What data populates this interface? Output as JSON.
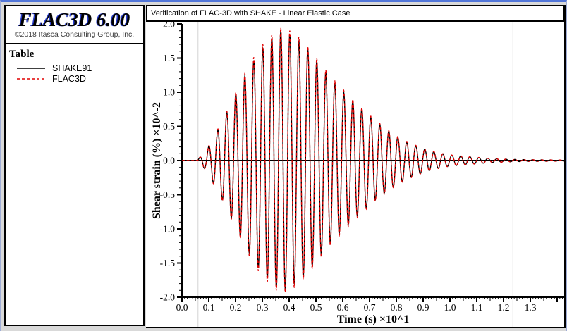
{
  "app": {
    "logo": "FLAC3D 6.00",
    "copyright": "©2018 Itasca Consulting Group, Inc."
  },
  "legend": {
    "title": "Table",
    "items": [
      {
        "label": "SHAKE91",
        "color": "#000000",
        "style": "solid"
      },
      {
        "label": "FLAC3D",
        "color": "#e00000",
        "style": "dashed"
      }
    ]
  },
  "plot_window": {
    "title": "Verification of FLAC-3D with SHAKE - Linear Elastic Case"
  },
  "chart_data": {
    "type": "line",
    "title": "Verification of FLAC-3D with SHAKE - Linear Elastic Case",
    "xlabel": "Time (s) ×10^1",
    "ylabel": "Shear strain (%) ×10^-2",
    "xlim": [
      0,
      1.426
    ],
    "ylim": [
      -2.0,
      2.0
    ],
    "x_tick_labels": [
      "0.0",
      "0.1",
      "0.2",
      "0.3",
      "0.4",
      "0.5",
      "0.6",
      "0.7",
      "0.8",
      "0.9",
      "1.0",
      "1.1",
      "1.2",
      "1.3"
    ],
    "x_major_step": 0.1,
    "x_medium_step": 0.05,
    "x_minor_step": 0.01,
    "y_tick_labels": [
      "2.0",
      "1.5",
      "1.0",
      "0.5",
      "0.0",
      "-0.5",
      "-1.0",
      "-1.5",
      "-2.0"
    ],
    "y_major_step": 0.5,
    "y_minor_step": 0.1,
    "grid": {
      "vertical_lines_x": [
        0.06,
        1.235
      ],
      "color": "#d2d2d2"
    },
    "zero_line": true,
    "legend_position": "left-panel",
    "series": [
      {
        "name": "SHAKE91",
        "color": "#000000",
        "style": "solid",
        "amplitude_scale": 1.0
      },
      {
        "name": "FLAC3D",
        "color": "#e00000",
        "style": "dashed",
        "amplitude_scale": 1.03
      }
    ],
    "signal": {
      "description": "Amplitude-modulated sinusoid: y(t) = envelope(t) * sin(2*pi*(t-start_time)/carrier_period); flat at 0 before start_time. Both series overlay (FLAC3D matches SHAKE91).",
      "start_time": 0.058,
      "carrier_period": 0.0336,
      "peak_amplitude": 1.89,
      "peak_time": 0.37,
      "envelope": [
        [
          0.055,
          0
        ],
        [
          0.07,
          0.06
        ],
        [
          0.09,
          0.14
        ],
        [
          0.11,
          0.28
        ],
        [
          0.13,
          0.42
        ],
        [
          0.15,
          0.57
        ],
        [
          0.17,
          0.72
        ],
        [
          0.19,
          0.88
        ],
        [
          0.21,
          1.04
        ],
        [
          0.23,
          1.2
        ],
        [
          0.25,
          1.35
        ],
        [
          0.27,
          1.48
        ],
        [
          0.29,
          1.6
        ],
        [
          0.31,
          1.69
        ],
        [
          0.33,
          1.77
        ],
        [
          0.35,
          1.84
        ],
        [
          0.37,
          1.89
        ],
        [
          0.39,
          1.87
        ],
        [
          0.41,
          1.83
        ],
        [
          0.43,
          1.78
        ],
        [
          0.45,
          1.7
        ],
        [
          0.47,
          1.62
        ],
        [
          0.49,
          1.52
        ],
        [
          0.51,
          1.42
        ],
        [
          0.53,
          1.32
        ],
        [
          0.55,
          1.22
        ],
        [
          0.57,
          1.13
        ],
        [
          0.59,
          1.05
        ],
        [
          0.61,
          0.97
        ],
        [
          0.63,
          0.9
        ],
        [
          0.65,
          0.82
        ],
        [
          0.67,
          0.75
        ],
        [
          0.69,
          0.68
        ],
        [
          0.71,
          0.61
        ],
        [
          0.73,
          0.55
        ],
        [
          0.75,
          0.49
        ],
        [
          0.77,
          0.43
        ],
        [
          0.79,
          0.38
        ],
        [
          0.81,
          0.33
        ],
        [
          0.83,
          0.29
        ],
        [
          0.85,
          0.25
        ],
        [
          0.87,
          0.22
        ],
        [
          0.89,
          0.19
        ],
        [
          0.91,
          0.16
        ],
        [
          0.93,
          0.14
        ],
        [
          0.95,
          0.12
        ],
        [
          0.97,
          0.1
        ],
        [
          1.0,
          0.08
        ],
        [
          1.03,
          0.07
        ],
        [
          1.06,
          0.06
        ],
        [
          1.09,
          0.05
        ],
        [
          1.12,
          0.04
        ],
        [
          1.15,
          0.03
        ],
        [
          1.18,
          0.025
        ],
        [
          1.21,
          0.02
        ],
        [
          1.25,
          0.015
        ],
        [
          1.3,
          0.012
        ],
        [
          1.35,
          0.01
        ],
        [
          1.42,
          0.008
        ]
      ]
    }
  }
}
